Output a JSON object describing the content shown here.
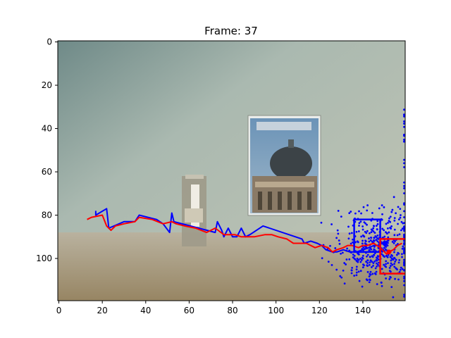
{
  "chart_data": {
    "type": "line",
    "title": "Frame: 37",
    "xlabel": "",
    "ylabel": "",
    "xlim": [
      -0.5,
      159.5
    ],
    "ylim": [
      119.5,
      -0.5
    ],
    "y_inverted": true,
    "grid": false,
    "x_ticks": [
      0,
      20,
      40,
      60,
      80,
      100,
      120,
      140
    ],
    "y_ticks": [
      0,
      20,
      40,
      60,
      80,
      100
    ],
    "background": "camera frame image (wall, poster of a domed building, bottle on table)",
    "series": [
      {
        "color": "#0000ff",
        "points": [
          [
            17,
            78
          ],
          [
            17,
            80
          ],
          [
            22,
            77
          ],
          [
            23,
            86
          ],
          [
            30,
            83
          ],
          [
            35,
            83
          ],
          [
            37,
            80
          ],
          [
            45,
            82
          ],
          [
            48,
            84
          ],
          [
            51,
            88
          ],
          [
            52,
            79
          ],
          [
            53,
            83
          ],
          [
            72,
            88
          ],
          [
            73,
            83
          ],
          [
            75,
            87
          ],
          [
            76,
            90
          ],
          [
            78,
            86
          ],
          [
            80,
            90
          ],
          [
            82,
            90
          ],
          [
            84,
            86
          ],
          [
            86,
            90
          ],
          [
            88,
            89
          ],
          [
            94,
            85
          ],
          [
            112,
            91
          ],
          [
            113,
            93
          ],
          [
            116,
            92
          ],
          [
            119,
            93
          ],
          [
            121,
            94
          ],
          [
            123,
            96
          ],
          [
            126,
            97
          ],
          [
            128,
            97
          ],
          [
            131,
            96
          ],
          [
            134,
            97
          ],
          [
            137,
            97
          ],
          [
            140,
            96
          ],
          [
            143,
            95
          ],
          [
            145,
            94
          ],
          [
            147,
            94
          ],
          [
            149,
            93
          ],
          [
            150,
            93
          ]
        ]
      },
      {
        "color": "#ff0000",
        "points": [
          [
            13,
            82
          ],
          [
            15,
            81
          ],
          [
            20,
            80
          ],
          [
            22,
            85
          ],
          [
            24,
            87
          ],
          [
            26,
            85
          ],
          [
            30,
            84
          ],
          [
            35,
            83
          ],
          [
            37,
            81
          ],
          [
            43,
            82
          ],
          [
            48,
            84
          ],
          [
            52,
            83
          ],
          [
            54,
            84
          ],
          [
            58,
            85
          ],
          [
            63,
            86
          ],
          [
            68,
            88
          ],
          [
            72,
            86
          ],
          [
            76,
            89
          ],
          [
            81,
            89
          ],
          [
            84,
            90
          ],
          [
            88,
            90
          ],
          [
            90,
            90
          ],
          [
            95,
            89
          ],
          [
            98,
            89
          ],
          [
            101,
            90
          ],
          [
            105,
            91
          ],
          [
            108,
            93
          ],
          [
            111,
            93
          ],
          [
            114,
            93
          ],
          [
            118,
            95
          ],
          [
            121,
            94
          ],
          [
            124,
            95
          ],
          [
            126,
            97
          ],
          [
            128,
            96
          ],
          [
            131,
            95
          ],
          [
            133,
            94
          ],
          [
            135,
            94
          ],
          [
            138,
            95
          ],
          [
            140,
            94
          ],
          [
            142,
            94
          ],
          [
            145,
            93
          ],
          [
            148,
            95
          ],
          [
            151,
            98
          ],
          [
            152,
            97
          ],
          [
            154,
            96
          ],
          [
            156,
            94
          ],
          [
            158,
            93
          ]
        ]
      }
    ],
    "boxes": [
      {
        "color": "#0000ff",
        "x": [
          136,
          148
        ],
        "y": [
          82,
          97
        ]
      },
      {
        "color": "#ff0000",
        "x": [
          148,
          160
        ],
        "y": [
          91,
          107
        ]
      }
    ],
    "markers": [
      {
        "color": "#0000ff",
        "x": 150,
        "y": 93
      },
      {
        "color": "#ff0000",
        "x": 152,
        "y": 97
      }
    ],
    "scatter": {
      "color": "#0000ff",
      "seed": 37,
      "center": [
        145,
        95
      ],
      "spread": [
        18,
        18
      ],
      "count": 420,
      "x_range": [
        104,
        159
      ],
      "y_range": [
        29,
        119
      ]
    }
  }
}
